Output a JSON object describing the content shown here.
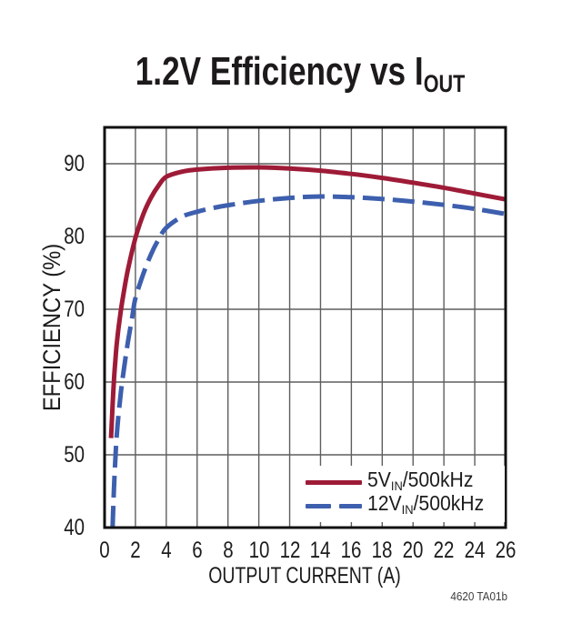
{
  "title": {
    "prefix": "1.2V Efficiency vs I",
    "subscript": "OUT"
  },
  "footnote": "4620 TA01b",
  "colors": {
    "series_red": "#9e1b37",
    "series_blue": "#3d5fae",
    "grid": "#5e5e5e",
    "frame": "#111111",
    "text": "#1c1c1c",
    "background": "#ffffff"
  },
  "chart_data": {
    "type": "line",
    "title": "1.2V Efficiency vs IOUT",
    "xlabel": "OUTPUT CURRENT (A)",
    "ylabel": "EFFICIENCY (%)",
    "xlim": [
      0,
      26
    ],
    "ylim": [
      40,
      95
    ],
    "xticks": [
      0,
      2,
      4,
      6,
      8,
      10,
      12,
      14,
      16,
      18,
      20,
      22,
      24,
      26
    ],
    "yticks": [
      40,
      50,
      60,
      70,
      80,
      90
    ],
    "grid": true,
    "legend_position": "lower right",
    "series": [
      {
        "name": "5VIN/500kHz",
        "label": {
          "prefix": "5V",
          "sub": "IN",
          "suffix": "/500kHz"
        },
        "color": "#9e1b37",
        "line_style": "solid",
        "points": [
          [
            0.42,
            52.3
          ],
          [
            0.5,
            56
          ],
          [
            0.6,
            60
          ],
          [
            0.7,
            63
          ],
          [
            0.8,
            65.5
          ],
          [
            1,
            69
          ],
          [
            1.2,
            71.8
          ],
          [
            1.5,
            75.3
          ],
          [
            2,
            79.8
          ],
          [
            2.5,
            83
          ],
          [
            3,
            85.3
          ],
          [
            3.5,
            87
          ],
          [
            4,
            88.2
          ],
          [
            5,
            88.9
          ],
          [
            6,
            89.2
          ],
          [
            8,
            89.45
          ],
          [
            10,
            89.5
          ],
          [
            12,
            89.35
          ],
          [
            14,
            89.05
          ],
          [
            16,
            88.6
          ],
          [
            18,
            88.05
          ],
          [
            20,
            87.4
          ],
          [
            22,
            86.7
          ],
          [
            24,
            85.9
          ],
          [
            26,
            85.1
          ]
        ]
      },
      {
        "name": "12VIN/500kHz",
        "label": {
          "prefix": "12V",
          "sub": "IN",
          "suffix": "/500kHz"
        },
        "color": "#3d5fae",
        "line_style": "dashed",
        "points": [
          [
            0.52,
            40
          ],
          [
            0.6,
            45
          ],
          [
            0.7,
            49.5
          ],
          [
            0.8,
            53
          ],
          [
            1,
            57.5
          ],
          [
            1.2,
            61
          ],
          [
            1.5,
            65.3
          ],
          [
            1.8,
            69
          ],
          [
            2,
            71.5
          ],
          [
            2.5,
            74.8
          ],
          [
            3,
            77.5
          ],
          [
            3.5,
            79.6
          ],
          [
            4,
            81.2
          ],
          [
            5,
            82.7
          ],
          [
            6,
            83.4
          ],
          [
            7,
            83.9
          ],
          [
            8,
            84.3
          ],
          [
            10,
            84.9
          ],
          [
            12,
            85.3
          ],
          [
            14,
            85.5
          ],
          [
            16,
            85.4
          ],
          [
            18,
            85.15
          ],
          [
            20,
            84.8
          ],
          [
            22,
            84.35
          ],
          [
            24,
            83.8
          ],
          [
            26,
            83.1
          ]
        ]
      }
    ]
  }
}
